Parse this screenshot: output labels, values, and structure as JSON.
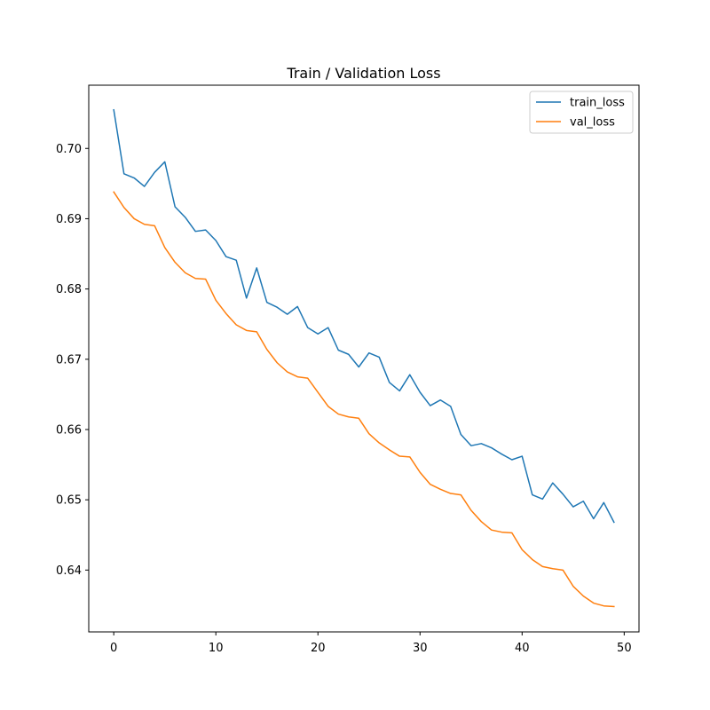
{
  "chart_data": {
    "type": "line",
    "title": "Train / Validation Loss",
    "xlabel": "",
    "ylabel": "",
    "xlim": [
      -2.45,
      51.45
    ],
    "ylim": [
      0.6312,
      0.709
    ],
    "xticks": [
      0,
      10,
      20,
      30,
      40,
      50
    ],
    "yticks": [
      0.64,
      0.65,
      0.66,
      0.67,
      0.68,
      0.69,
      0.7
    ],
    "grid": false,
    "legend_position": "top-right",
    "x": [
      0,
      1,
      2,
      3,
      4,
      5,
      6,
      7,
      8,
      9,
      10,
      11,
      12,
      13,
      14,
      15,
      16,
      17,
      18,
      19,
      20,
      21,
      22,
      23,
      24,
      25,
      26,
      27,
      28,
      29,
      30,
      31,
      32,
      33,
      34,
      35,
      36,
      37,
      38,
      39,
      40,
      41,
      42,
      43,
      44,
      45,
      46,
      47,
      48,
      49
    ],
    "series": [
      {
        "name": "train_loss",
        "color": "#1f77b4",
        "values": [
          0.7055,
          0.6964,
          0.6958,
          0.6946,
          0.6966,
          0.6981,
          0.6917,
          0.6902,
          0.6882,
          0.6884,
          0.6869,
          0.6846,
          0.6841,
          0.6787,
          0.683,
          0.6781,
          0.6774,
          0.6764,
          0.6775,
          0.6745,
          0.6736,
          0.6745,
          0.6713,
          0.6707,
          0.6689,
          0.6709,
          0.6703,
          0.6667,
          0.6655,
          0.6678,
          0.6653,
          0.6634,
          0.6642,
          0.6633,
          0.6593,
          0.6577,
          0.658,
          0.6574,
          0.6565,
          0.6557,
          0.6562,
          0.6507,
          0.6501,
          0.6524,
          0.6508,
          0.649,
          0.6498,
          0.6473,
          0.6496,
          0.6468
        ]
      },
      {
        "name": "val_loss",
        "color": "#ff7f0e",
        "values": [
          0.6938,
          0.6916,
          0.69,
          0.6892,
          0.689,
          0.6859,
          0.6838,
          0.6823,
          0.6815,
          0.6814,
          0.6784,
          0.6765,
          0.6749,
          0.6741,
          0.6739,
          0.6714,
          0.6695,
          0.6682,
          0.6675,
          0.6673,
          0.6653,
          0.6633,
          0.6622,
          0.6618,
          0.6616,
          0.6594,
          0.6581,
          0.6571,
          0.6562,
          0.6561,
          0.6539,
          0.6522,
          0.6515,
          0.6509,
          0.6507,
          0.6485,
          0.6469,
          0.6457,
          0.6454,
          0.6453,
          0.6429,
          0.6415,
          0.6405,
          0.6402,
          0.64,
          0.6377,
          0.6363,
          0.6353,
          0.6349,
          0.6348
        ]
      }
    ]
  }
}
